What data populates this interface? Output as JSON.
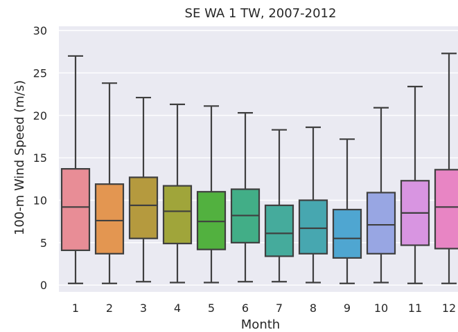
{
  "chart_data": {
    "type": "box",
    "title": "SE WA 1 TW, 2007-2012",
    "xlabel": "Month",
    "ylabel": "100-m Wind Speed (m/s)",
    "ylim": [
      -0.8,
      30.5
    ],
    "yticks": [
      0,
      5,
      10,
      15,
      20,
      25,
      30
    ],
    "grid": true,
    "categories": [
      "1",
      "2",
      "3",
      "4",
      "5",
      "6",
      "7",
      "8",
      "9",
      "10",
      "11",
      "12"
    ],
    "boxes": [
      {
        "category": "1",
        "whisker_low": 0.2,
        "q1": 4.1,
        "median": 9.2,
        "q3": 13.7,
        "whisker_high": 27.0,
        "color": "#e88d96"
      },
      {
        "category": "2",
        "whisker_low": 0.2,
        "q1": 3.7,
        "median": 7.6,
        "q3": 11.9,
        "whisker_high": 23.8,
        "color": "#e39651"
      },
      {
        "category": "3",
        "whisker_low": 0.4,
        "q1": 5.5,
        "median": 9.4,
        "q3": 12.7,
        "whisker_high": 22.1,
        "color": "#b59a3e"
      },
      {
        "category": "4",
        "whisker_low": 0.3,
        "q1": 4.9,
        "median": 8.7,
        "q3": 11.7,
        "whisker_high": 21.3,
        "color": "#a0a53a"
      },
      {
        "category": "5",
        "whisker_low": 0.3,
        "q1": 4.2,
        "median": 7.5,
        "q3": 11.0,
        "whisker_high": 21.1,
        "color": "#52b13f"
      },
      {
        "category": "6",
        "whisker_low": 0.4,
        "q1": 5.0,
        "median": 8.2,
        "q3": 11.3,
        "whisker_high": 20.3,
        "color": "#42ae87"
      },
      {
        "category": "7",
        "whisker_low": 0.4,
        "q1": 3.4,
        "median": 6.1,
        "q3": 9.4,
        "whisker_high": 18.3,
        "color": "#45ab9c"
      },
      {
        "category": "8",
        "whisker_low": 0.3,
        "q1": 3.7,
        "median": 6.7,
        "q3": 10.0,
        "whisker_high": 18.6,
        "color": "#47a7b0"
      },
      {
        "category": "9",
        "whisker_low": 0.2,
        "q1": 3.2,
        "median": 5.5,
        "q3": 8.9,
        "whisker_high": 17.2,
        "color": "#4fa6d1"
      },
      {
        "category": "10",
        "whisker_low": 0.3,
        "q1": 3.7,
        "median": 7.1,
        "q3": 10.9,
        "whisker_high": 20.9,
        "color": "#98a6e3"
      },
      {
        "category": "11",
        "whisker_low": 0.2,
        "q1": 4.7,
        "median": 8.5,
        "q3": 12.3,
        "whisker_high": 23.4,
        "color": "#d895e1"
      },
      {
        "category": "12",
        "whisker_low": 0.2,
        "q1": 4.3,
        "median": 9.2,
        "q3": 13.6,
        "whisker_high": 27.3,
        "color": "#e885c4"
      }
    ],
    "colors": {
      "plot_background": "#eaeaf2",
      "grid": "#ffffff",
      "box_edge": "#3f3f3f",
      "text": "#262626"
    }
  }
}
